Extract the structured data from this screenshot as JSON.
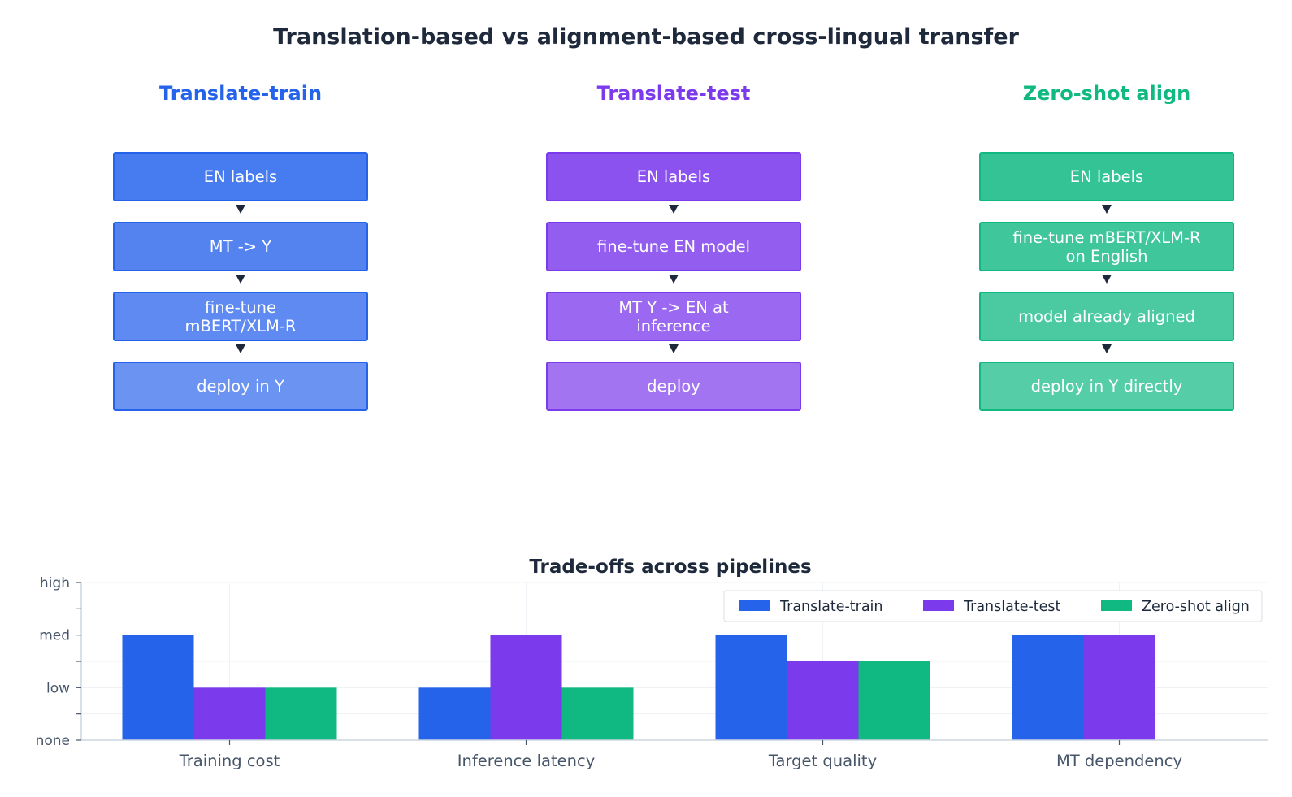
{
  "title": "Translation-based vs alignment-based cross-lingual transfer",
  "pipelines": [
    {
      "name": "Translate-train",
      "color": "#2563eb",
      "box_colors": [
        "#477bf0",
        "#5483f0",
        "#5e8af1",
        "#6a93f2"
      ],
      "steps": [
        "EN labels",
        "MT -> Y",
        "fine-tune\nmBERT/XLM-R",
        "deploy in Y"
      ]
    },
    {
      "name": "Translate-test",
      "color": "#7c3aed",
      "box_colors": [
        "#8c52ef",
        "#935def",
        "#9b69f1",
        "#a374f2"
      ],
      "steps": [
        "EN labels",
        "fine-tune EN model",
        "MT Y -> EN at\ninference",
        "deploy"
      ]
    },
    {
      "name": "Zero-shot align",
      "color": "#10b981",
      "box_colors": [
        "#33c395",
        "#3fc79b",
        "#4bcaa1",
        "#55cda6"
      ],
      "steps": [
        "EN labels",
        "fine-tune mBERT/XLM-R\non English",
        "model already aligned",
        "deploy in Y directly"
      ]
    }
  ],
  "chart_data": {
    "type": "bar",
    "title": "Trade-offs across pipelines",
    "categories": [
      "Training cost",
      "Inference latency",
      "Target quality",
      "MT dependency"
    ],
    "y_ticks": [
      {
        "value": 0,
        "label": "none"
      },
      {
        "value": 1,
        "label": "low"
      },
      {
        "value": 2,
        "label": "med"
      },
      {
        "value": 3,
        "label": "high"
      }
    ],
    "ylim": [
      0,
      3
    ],
    "series": [
      {
        "name": "Translate-train",
        "color": "#2563eb",
        "values": [
          2,
          1,
          2,
          2
        ]
      },
      {
        "name": "Translate-test",
        "color": "#7c3aed",
        "values": [
          1,
          2,
          1.5,
          2
        ]
      },
      {
        "name": "Zero-shot align",
        "color": "#10b981",
        "values": [
          1,
          1,
          1.5,
          0
        ]
      }
    ],
    "legend_position": "top-right",
    "grid": true
  }
}
